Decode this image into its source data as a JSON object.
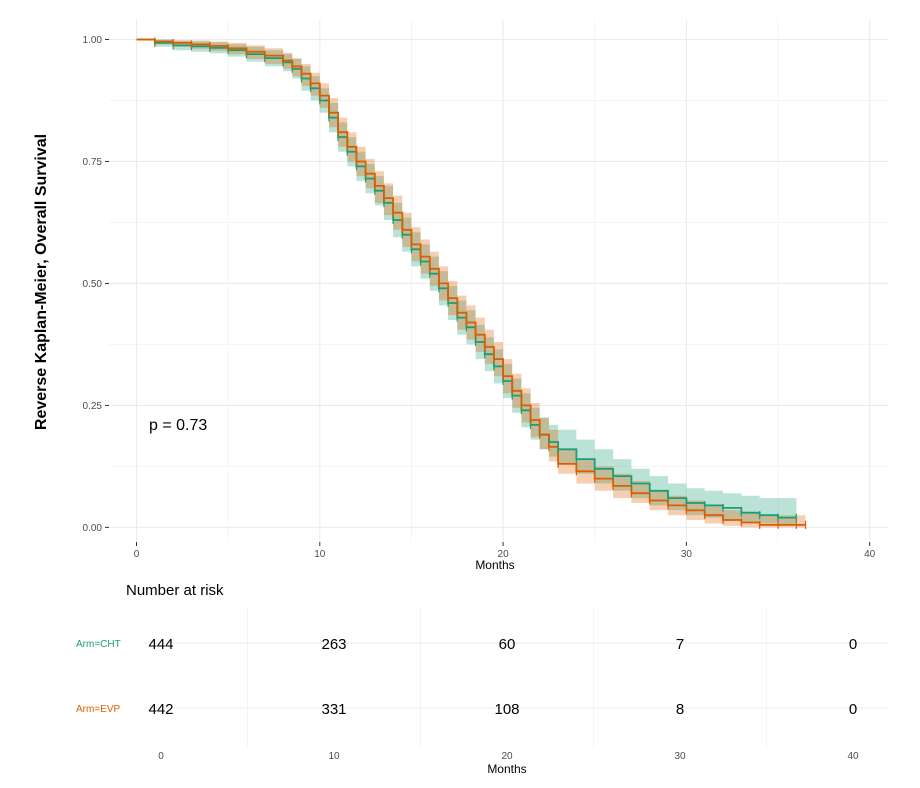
{
  "chart_data": {
    "type": "line",
    "ylabel": "Reverse Kaplan-Meier, Overall Survival",
    "xlabel": "Months",
    "xlim": [
      -1.5,
      41
    ],
    "ylim": [
      -0.03,
      1.04
    ],
    "x_ticks": [
      "0",
      "10",
      "20",
      "30",
      "40"
    ],
    "y_ticks": [
      "0.00",
      "0.25",
      "0.50",
      "0.75",
      "1.00"
    ],
    "x_tick_values": [
      0,
      10,
      20,
      30,
      40
    ],
    "y_tick_values": [
      0,
      0.25,
      0.5,
      0.75,
      1.0
    ],
    "grid": true,
    "annotation": "p = 0.73",
    "series": [
      {
        "name": "Arm=CHT",
        "color": "#1b9e77",
        "x": [
          0,
          1,
          2,
          3,
          4,
          5,
          6,
          7,
          8,
          8.5,
          9,
          9.5,
          10,
          10.5,
          11,
          11.5,
          12,
          12.5,
          13,
          13.5,
          14,
          14.5,
          15,
          15.5,
          16,
          16.5,
          17,
          17.5,
          18,
          18.5,
          19,
          19.5,
          20,
          20.5,
          21,
          21.5,
          22,
          22.5,
          23,
          24,
          25,
          26,
          27,
          28,
          29,
          30,
          31,
          32,
          33,
          34,
          35,
          36
        ],
        "y": [
          1.0,
          0.993,
          0.988,
          0.986,
          0.983,
          0.978,
          0.97,
          0.962,
          0.953,
          0.94,
          0.92,
          0.9,
          0.875,
          0.84,
          0.8,
          0.77,
          0.74,
          0.715,
          0.69,
          0.665,
          0.63,
          0.6,
          0.57,
          0.545,
          0.52,
          0.49,
          0.46,
          0.43,
          0.41,
          0.38,
          0.355,
          0.33,
          0.3,
          0.27,
          0.24,
          0.21,
          0.19,
          0.175,
          0.16,
          0.14,
          0.12,
          0.105,
          0.09,
          0.075,
          0.06,
          0.05,
          0.045,
          0.04,
          0.03,
          0.025,
          0.02,
          0.02
        ],
        "lower": [
          1.0,
          0.985,
          0.978,
          0.975,
          0.972,
          0.965,
          0.955,
          0.945,
          0.935,
          0.92,
          0.895,
          0.875,
          0.85,
          0.81,
          0.77,
          0.74,
          0.71,
          0.685,
          0.66,
          0.63,
          0.595,
          0.565,
          0.535,
          0.51,
          0.485,
          0.455,
          0.425,
          0.395,
          0.375,
          0.345,
          0.32,
          0.295,
          0.265,
          0.235,
          0.205,
          0.18,
          0.16,
          0.145,
          0.13,
          0.11,
          0.09,
          0.075,
          0.06,
          0.045,
          0.035,
          0.025,
          0.02,
          0.015,
          0.01,
          0.008,
          0.005,
          0.005
        ],
        "upper": [
          1.0,
          1.0,
          0.997,
          0.996,
          0.994,
          0.99,
          0.985,
          0.978,
          0.97,
          0.96,
          0.945,
          0.925,
          0.9,
          0.87,
          0.83,
          0.8,
          0.77,
          0.745,
          0.72,
          0.7,
          0.665,
          0.635,
          0.605,
          0.58,
          0.555,
          0.525,
          0.495,
          0.465,
          0.445,
          0.415,
          0.39,
          0.365,
          0.335,
          0.305,
          0.275,
          0.245,
          0.225,
          0.21,
          0.2,
          0.18,
          0.16,
          0.14,
          0.12,
          0.105,
          0.09,
          0.08,
          0.075,
          0.07,
          0.065,
          0.06,
          0.06,
          0.06
        ]
      },
      {
        "name": "Arm=EVP",
        "color": "#d95f02",
        "x": [
          0,
          1,
          2,
          3,
          4,
          5,
          6,
          7,
          8,
          8.5,
          9,
          9.5,
          10,
          10.5,
          11,
          11.5,
          12,
          12.5,
          13,
          13.5,
          14,
          14.5,
          15,
          15.5,
          16,
          16.5,
          17,
          17.5,
          18,
          18.5,
          19,
          19.5,
          20,
          20.5,
          21,
          21.5,
          22,
          22.5,
          23,
          24,
          25,
          26,
          27,
          28,
          29,
          30,
          31,
          32,
          33,
          34,
          35,
          36,
          36.5
        ],
        "y": [
          1.0,
          0.996,
          0.993,
          0.99,
          0.987,
          0.982,
          0.975,
          0.967,
          0.957,
          0.945,
          0.93,
          0.91,
          0.885,
          0.85,
          0.81,
          0.78,
          0.75,
          0.725,
          0.7,
          0.675,
          0.645,
          0.61,
          0.58,
          0.555,
          0.53,
          0.5,
          0.47,
          0.44,
          0.42,
          0.395,
          0.37,
          0.345,
          0.31,
          0.28,
          0.25,
          0.22,
          0.19,
          0.165,
          0.13,
          0.115,
          0.1,
          0.085,
          0.07,
          0.055,
          0.045,
          0.035,
          0.025,
          0.015,
          0.01,
          0.005,
          0.005,
          0.005,
          0.005
        ],
        "lower": [
          1.0,
          0.99,
          0.985,
          0.981,
          0.977,
          0.97,
          0.96,
          0.95,
          0.94,
          0.925,
          0.905,
          0.885,
          0.86,
          0.82,
          0.78,
          0.75,
          0.72,
          0.695,
          0.665,
          0.64,
          0.61,
          0.575,
          0.545,
          0.52,
          0.495,
          0.465,
          0.435,
          0.405,
          0.385,
          0.36,
          0.335,
          0.31,
          0.275,
          0.245,
          0.215,
          0.185,
          0.16,
          0.135,
          0.11,
          0.09,
          0.075,
          0.06,
          0.05,
          0.035,
          0.025,
          0.015,
          0.008,
          0.003,
          0.0,
          0.0,
          0.0,
          0.0,
          0.0
        ],
        "upper": [
          1.0,
          1.0,
          0.999,
          0.998,
          0.996,
          0.993,
          0.988,
          0.982,
          0.973,
          0.962,
          0.95,
          0.932,
          0.91,
          0.88,
          0.84,
          0.81,
          0.78,
          0.755,
          0.73,
          0.705,
          0.68,
          0.645,
          0.615,
          0.59,
          0.565,
          0.535,
          0.505,
          0.475,
          0.455,
          0.43,
          0.405,
          0.38,
          0.345,
          0.315,
          0.285,
          0.255,
          0.225,
          0.2,
          0.16,
          0.14,
          0.125,
          0.11,
          0.095,
          0.075,
          0.065,
          0.055,
          0.045,
          0.035,
          0.03,
          0.025,
          0.025,
          0.025,
          0.025
        ]
      }
    ]
  },
  "risk_table": {
    "title": "Number at risk",
    "xlabel": "Months",
    "x_ticks": [
      "0",
      "10",
      "20",
      "30",
      "40"
    ],
    "rows": [
      {
        "label": "Arm=CHT",
        "color": "#1b9e77",
        "values": [
          "444",
          "263",
          "60",
          "7",
          "0"
        ]
      },
      {
        "label": "Arm=EVP",
        "color": "#d95f02",
        "values": [
          "442",
          "331",
          "108",
          "8",
          "0"
        ]
      }
    ]
  }
}
